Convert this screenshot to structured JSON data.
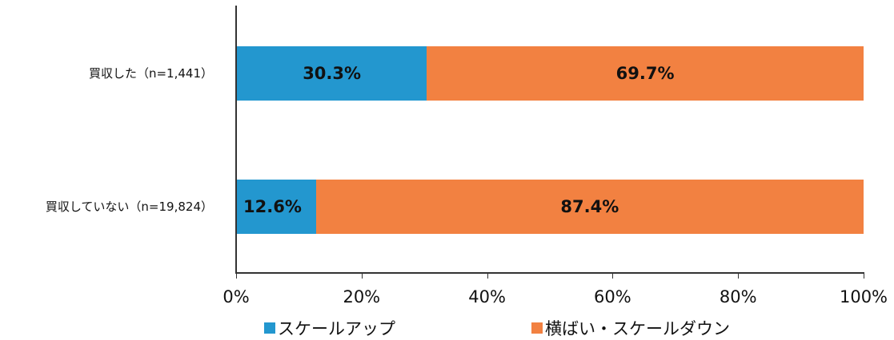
{
  "chart_data": {
    "type": "bar",
    "orientation": "horizontal",
    "stacked": true,
    "title": "",
    "xlabel": "",
    "ylabel": "",
    "xlim": [
      0,
      100
    ],
    "x_ticks": [
      "0%",
      "20%",
      "40%",
      "60%",
      "80%",
      "100%"
    ],
    "categories": [
      "買収した（n=1,441）",
      "買収していない（n=19,824）"
    ],
    "series": [
      {
        "name": "スケールアップ",
        "color": "#2397cf",
        "values": [
          30.3,
          12.6
        ],
        "labels": [
          "30.3%",
          "12.6%"
        ]
      },
      {
        "name": "横ばい・スケールダウン",
        "color": "#f28141",
        "values": [
          69.7,
          87.4
        ],
        "labels": [
          "69.7%",
          "87.4%"
        ]
      }
    ],
    "legend_position": "bottom",
    "grid": false
  }
}
